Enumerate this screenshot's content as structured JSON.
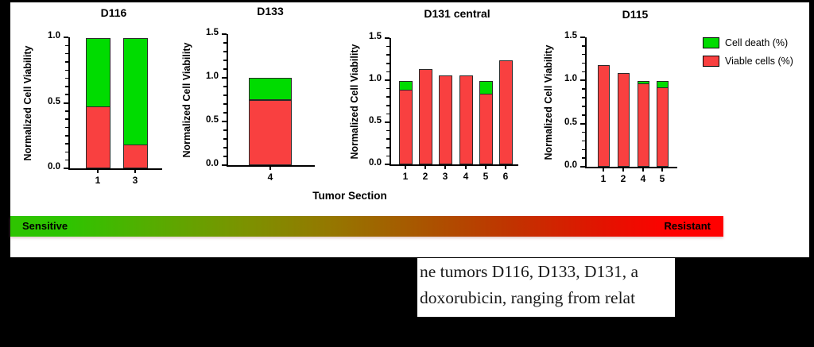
{
  "figure": {
    "legend": [
      {
        "label": "Cell death (%)",
        "color": "#00DC00"
      },
      {
        "label": "Viable cells (%)",
        "color": "#F94040"
      }
    ],
    "xlabel": "Tumor Section",
    "scale_bar": {
      "left_label": "Sensitive",
      "right_label": "Resistant",
      "left_color": "#2EC400",
      "right_color": "#FF0000"
    },
    "caption": {
      "line1": "ne tumors D116, D133, D131, a",
      "line2": "doxorubicin, ranging from relat"
    }
  },
  "chart_data": [
    {
      "type": "bar",
      "stacked": true,
      "title": "D116",
      "ylabel": "Normalized Cell Viability",
      "xlabel": "Tumor Section",
      "ylim": [
        0,
        1.0
      ],
      "yticks": [
        "0.0",
        "0.5",
        "1.0"
      ],
      "categories": [
        "1",
        "3"
      ],
      "series": [
        {
          "name": "Viable cells (%)",
          "color": "#F94040",
          "values": [
            0.47,
            0.18
          ]
        },
        {
          "name": "Cell death (%)",
          "color": "#00DC00",
          "values": [
            0.53,
            0.82
          ]
        }
      ],
      "legend_position": "none"
    },
    {
      "type": "bar",
      "stacked": true,
      "title": "D133",
      "ylabel": "Normalized Cell Viability",
      "xlabel": "Tumor Section",
      "ylim": [
        0,
        1.5
      ],
      "yticks": [
        "0.0",
        "0.5",
        "1.0",
        "1.5"
      ],
      "categories": [
        "4"
      ],
      "series": [
        {
          "name": "Viable cells (%)",
          "color": "#F94040",
          "values": [
            0.75
          ]
        },
        {
          "name": "Cell death (%)",
          "color": "#00DC00",
          "values": [
            0.26
          ]
        }
      ],
      "legend_position": "none"
    },
    {
      "type": "bar",
      "stacked": true,
      "title": "D131 central",
      "ylabel": "Normalized Cell Viability",
      "xlabel": "Tumor Section",
      "ylim": [
        0,
        1.5
      ],
      "yticks": [
        "0.0",
        "0.5",
        "1.0",
        "1.5"
      ],
      "categories": [
        "1",
        "2",
        "3",
        "4",
        "5",
        "6"
      ],
      "series": [
        {
          "name": "Viable cells (%)",
          "color": "#F94040",
          "values": [
            0.89,
            1.13,
            1.06,
            1.06,
            0.84,
            1.24
          ]
        },
        {
          "name": "Cell death (%)",
          "color": "#00DC00",
          "values": [
            0.11,
            0,
            0,
            0,
            0.16,
            0
          ]
        }
      ],
      "legend_position": "none"
    },
    {
      "type": "bar",
      "stacked": true,
      "title": "D115",
      "ylabel": "Normalized Cell Viability",
      "xlabel": "Tumor Section",
      "ylim": [
        0,
        1.5
      ],
      "yticks": [
        "0.0",
        "0.5",
        "1.0",
        "1.5"
      ],
      "categories": [
        "1",
        "2",
        "4",
        "5"
      ],
      "series": [
        {
          "name": "Viable cells (%)",
          "color": "#F94040",
          "values": [
            1.18,
            1.09,
            0.97,
            0.92
          ]
        },
        {
          "name": "Cell death (%)",
          "color": "#00DC00",
          "values": [
            0,
            0,
            0.03,
            0.08
          ]
        }
      ],
      "legend_position": "right"
    }
  ]
}
